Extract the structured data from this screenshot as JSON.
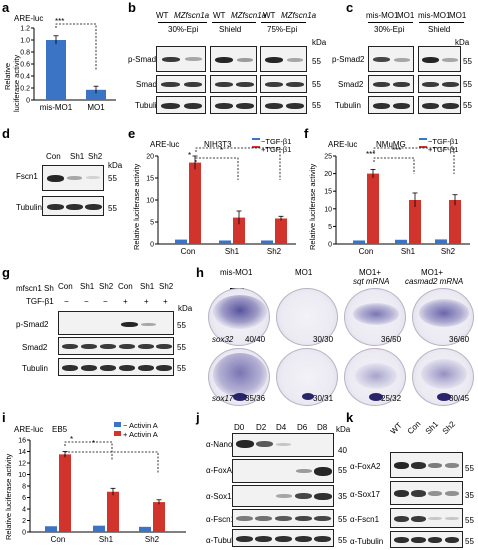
{
  "panels": {
    "a": {
      "label": "a",
      "assay": "ARE-luc",
      "ylabel_line1": "Relative",
      "ylabel_line2": "luciferase activity",
      "yticks": [
        "0",
        "0.2",
        "0.4",
        "0.6",
        "0.8",
        "1.0",
        "1.2"
      ],
      "categories": [
        "mis-MO1",
        "MO1"
      ],
      "significance": "***"
    },
    "b": {
      "label": "b",
      "lanes": [
        "WT",
        "MZfscn1a",
        "WT",
        "MZfscn1a",
        "WT",
        "MZfscn1a"
      ],
      "stages": [
        "30%-Epi",
        "Shield",
        "75%-Epi"
      ],
      "rows": [
        "p-Smad2",
        "Smad2",
        "Tubulin"
      ],
      "kda_header": "kDa",
      "markers": [
        "55",
        "55",
        "55"
      ]
    },
    "c": {
      "label": "c",
      "lanes": [
        "mis-MO1",
        "MO1",
        "mis-MO1",
        "MO1"
      ],
      "stages": [
        "30%-Epi",
        "Shield"
      ],
      "rows": [
        "p-Smad2",
        "Smad2",
        "Tubulin"
      ],
      "kda_header": "kDa",
      "markers": [
        "55",
        "55",
        "55"
      ]
    },
    "d": {
      "label": "d",
      "lanes": [
        "Con",
        "Sh1",
        "Sh2"
      ],
      "rows": [
        "Fscn1",
        "Tubulin"
      ],
      "kda_header": "kDa",
      "markers": [
        "55",
        "55"
      ]
    },
    "e": {
      "label": "e",
      "assay": "ARE-luc",
      "cell_line": "NIH3T3",
      "ylabel": "Relative luciferase activity",
      "yticks": [
        "0",
        "5",
        "10",
        "15",
        "20"
      ],
      "categories": [
        "Con",
        "Sh1",
        "Sh2"
      ],
      "legend": [
        "−TGF-β1",
        "+TGF-β1"
      ],
      "sig1": "*",
      "sig2": "*"
    },
    "f": {
      "label": "f",
      "assay": "ARE-luc",
      "cell_line": "NMuMG",
      "ylabel": "Relative luciferase activity",
      "yticks": [
        "0",
        "5",
        "10",
        "15",
        "20",
        "25"
      ],
      "categories": [
        "Con",
        "Sh1",
        "Sh2"
      ],
      "legend": [
        "−TGF-β1",
        "+TGF-β1"
      ],
      "sig1": "***",
      "sig2": "***"
    },
    "g": {
      "label": "g",
      "row_header": "mfscn1 Sh",
      "treatment": "TGF-β1",
      "lanes": [
        "Con",
        "Sh1",
        "Sh2",
        "Con",
        "Sh1",
        "Sh2"
      ],
      "treat_marks": [
        "−",
        "−",
        "−",
        "+",
        "+",
        "+"
      ],
      "rows": [
        "p-Smad2",
        "Smad2",
        "Tubulin"
      ],
      "kda_header": "kDa",
      "markers": [
        "55",
        "55",
        "55"
      ]
    },
    "h": {
      "label": "h",
      "columns": [
        "mis-MO1",
        "MO1",
        "MO1+",
        "MO1+"
      ],
      "mrna_line": [
        "",
        "",
        "sqt mRNA",
        "casmad2 mRNA"
      ],
      "markers_row": [
        "sox32",
        "sox17"
      ],
      "counts_row1": [
        "40/40",
        "30/30",
        "36/50",
        "36/60"
      ],
      "counts_row2": [
        "35/36",
        "30/31",
        "25/32",
        "30/45"
      ]
    },
    "i": {
      "label": "i",
      "assay": "ARE-luc",
      "cell_line": "EB5",
      "ylabel": "Relative luciferase activity",
      "yticks": [
        "0",
        "2",
        "4",
        "6",
        "8",
        "10",
        "12",
        "14",
        "16"
      ],
      "categories": [
        "Con",
        "Sh1",
        "Sh2"
      ],
      "legend": [
        "− Activin A",
        "+ Activin A"
      ],
      "sig1": "*",
      "sig2": "*"
    },
    "j": {
      "label": "j",
      "lanes": [
        "D0",
        "D2",
        "D4",
        "D6",
        "D8"
      ],
      "rows": [
        "α-Nanog",
        "α-FoxA2",
        "α-Sox17",
        "α-Fscn1",
        "α-Tubulin"
      ],
      "kda_header": "kDa",
      "markers": [
        "40",
        "55",
        "35",
        "55",
        "55"
      ]
    },
    "k": {
      "label": "k",
      "lanes": [
        "WT",
        "Con",
        "Sh1",
        "Sh2"
      ],
      "rows": [
        "α-FoxA2",
        "α-Sox17",
        "α-Fscn1",
        "α-Tubulin"
      ],
      "markers": [
        "55",
        "35",
        "55",
        "55"
      ]
    }
  },
  "colors": {
    "blue": "#3b74c4",
    "red": "#d0342c"
  },
  "chart_data": [
    {
      "panel": "a",
      "type": "bar",
      "title": "ARE-luc",
      "categories": [
        "mis-MO1",
        "MO1"
      ],
      "values": [
        1.0,
        0.17
      ],
      "errors": [
        0.07,
        0.06
      ],
      "ylim": [
        0,
        1.2
      ],
      "ylabel": "Relative luciferase activity"
    },
    {
      "panel": "e",
      "type": "bar",
      "title": "NIH3T3",
      "categories": [
        "Con",
        "Sh1",
        "Sh2"
      ],
      "series": [
        {
          "name": "−TGF-β1",
          "values": [
            1.0,
            0.8,
            0.8
          ]
        },
        {
          "name": "+TGF-β1",
          "values": [
            18.5,
            6.0,
            5.8
          ]
        }
      ],
      "errors": [
        1.5,
        1.5,
        0.5
      ],
      "ylim": [
        0,
        20
      ],
      "ylabel": "Relative luciferase activity"
    },
    {
      "panel": "f",
      "type": "bar",
      "title": "NMuMG",
      "categories": [
        "Con",
        "Sh1",
        "Sh2"
      ],
      "series": [
        {
          "name": "−TGF-β1",
          "values": [
            1.0,
            1.2,
            1.3
          ]
        },
        {
          "name": "+TGF-β1",
          "values": [
            20.0,
            12.5,
            12.5
          ]
        }
      ],
      "errors": [
        1.2,
        2.0,
        1.5
      ],
      "ylim": [
        0,
        25
      ],
      "ylabel": "Relative luciferase activity"
    },
    {
      "panel": "i",
      "type": "bar",
      "title": "EB5",
      "categories": [
        "Con",
        "Sh1",
        "Sh2"
      ],
      "series": [
        {
          "name": "− Activin A",
          "values": [
            1.0,
            1.1,
            0.9
          ]
        },
        {
          "name": "+ Activin A",
          "values": [
            13.5,
            7.0,
            5.2
          ]
        }
      ],
      "errors": [
        0.5,
        0.6,
        0.4
      ],
      "ylim": [
        0,
        16
      ],
      "ylabel": "Relative luciferase activity"
    }
  ]
}
